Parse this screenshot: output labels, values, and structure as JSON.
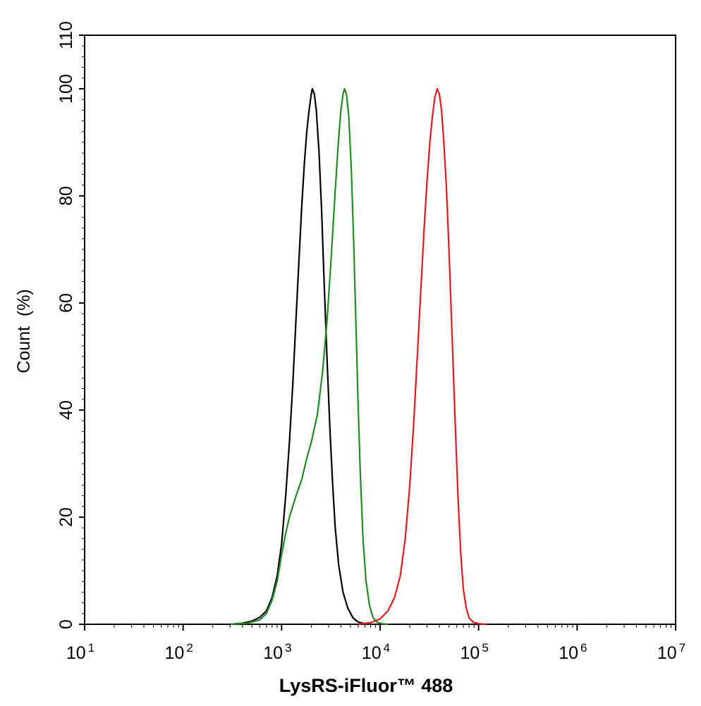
{
  "chart_data": {
    "type": "line",
    "xlabel": "LysRS-iFluor™ 488",
    "ylabel": "Count  (%)",
    "x_scale": "log",
    "xlim": [
      10,
      10000000
    ],
    "ylim": [
      0,
      110
    ],
    "x_ticks": [
      {
        "value": 10,
        "base": "10",
        "exp": "1"
      },
      {
        "value": 100,
        "base": "10",
        "exp": "2"
      },
      {
        "value": 1000,
        "base": "10",
        "exp": "3"
      },
      {
        "value": 10000,
        "base": "10",
        "exp": "4"
      },
      {
        "value": 100000,
        "base": "10",
        "exp": "5"
      },
      {
        "value": 1000000,
        "base": "10",
        "exp": "6"
      },
      {
        "value": 10000000,
        "base": "10",
        "exp": "7"
      }
    ],
    "y_ticks": [
      0,
      20,
      40,
      60,
      80,
      100,
      110
    ],
    "y_minor_step": 2,
    "grid": false,
    "series": [
      {
        "color": "#000000",
        "points": [
          [
            300,
            0
          ],
          [
            400,
            0.2
          ],
          [
            500,
            0.6
          ],
          [
            600,
            1.3
          ],
          [
            700,
            2.5
          ],
          [
            800,
            5
          ],
          [
            900,
            9
          ],
          [
            1000,
            15
          ],
          [
            1100,
            24
          ],
          [
            1200,
            34
          ],
          [
            1300,
            45
          ],
          [
            1400,
            57
          ],
          [
            1500,
            68
          ],
          [
            1600,
            78
          ],
          [
            1700,
            86
          ],
          [
            1800,
            92
          ],
          [
            1900,
            96
          ],
          [
            2000,
            99
          ],
          [
            2050,
            100
          ],
          [
            2150,
            99
          ],
          [
            2250,
            96
          ],
          [
            2400,
            88
          ],
          [
            2550,
            77
          ],
          [
            2700,
            64
          ],
          [
            2900,
            49
          ],
          [
            3100,
            36
          ],
          [
            3300,
            26
          ],
          [
            3500,
            18
          ],
          [
            3800,
            11
          ],
          [
            4200,
            6
          ],
          [
            4700,
            3
          ],
          [
            5300,
            1.2
          ],
          [
            6000,
            0.4
          ],
          [
            7000,
            0.1
          ],
          [
            8000,
            0
          ]
        ]
      },
      {
        "color": "#228b22",
        "points": [
          [
            300,
            0
          ],
          [
            450,
            0.2
          ],
          [
            600,
            0.8
          ],
          [
            700,
            2
          ],
          [
            800,
            4.5
          ],
          [
            900,
            8
          ],
          [
            1000,
            13
          ],
          [
            1100,
            17
          ],
          [
            1200,
            20
          ],
          [
            1400,
            24
          ],
          [
            1600,
            27
          ],
          [
            1800,
            31
          ],
          [
            2000,
            34
          ],
          [
            2300,
            39
          ],
          [
            2600,
            47
          ],
          [
            2900,
            57
          ],
          [
            3200,
            69
          ],
          [
            3500,
            81
          ],
          [
            3800,
            91
          ],
          [
            4000,
            96
          ],
          [
            4200,
            99
          ],
          [
            4350,
            100
          ],
          [
            4550,
            99
          ],
          [
            4800,
            95
          ],
          [
            5100,
            85
          ],
          [
            5400,
            71
          ],
          [
            5700,
            55
          ],
          [
            6000,
            40
          ],
          [
            6300,
            28
          ],
          [
            6700,
            16
          ],
          [
            7200,
            8
          ],
          [
            7800,
            3.5
          ],
          [
            8500,
            1.2
          ],
          [
            9300,
            0.4
          ],
          [
            10500,
            0.1
          ],
          [
            12000,
            0
          ]
        ]
      },
      {
        "color": "#e31a1c",
        "points": [
          [
            6000,
            0
          ],
          [
            8000,
            0.3
          ],
          [
            10000,
            1
          ],
          [
            12000,
            2.5
          ],
          [
            14000,
            5
          ],
          [
            16000,
            9
          ],
          [
            18000,
            16
          ],
          [
            20000,
            26
          ],
          [
            22000,
            38
          ],
          [
            24000,
            51
          ],
          [
            26000,
            63
          ],
          [
            28000,
            74
          ],
          [
            30000,
            83
          ],
          [
            32000,
            90
          ],
          [
            34000,
            95
          ],
          [
            36000,
            98.5
          ],
          [
            38000,
            100
          ],
          [
            40000,
            99
          ],
          [
            42000,
            96
          ],
          [
            44000,
            91
          ],
          [
            47000,
            82
          ],
          [
            50000,
            70
          ],
          [
            54000,
            53
          ],
          [
            58000,
            37
          ],
          [
            62000,
            23
          ],
          [
            66000,
            13
          ],
          [
            70000,
            6.5
          ],
          [
            75000,
            3
          ],
          [
            80000,
            1.2
          ],
          [
            88000,
            0.4
          ],
          [
            100000,
            0.1
          ],
          [
            120000,
            0
          ]
        ]
      }
    ]
  }
}
